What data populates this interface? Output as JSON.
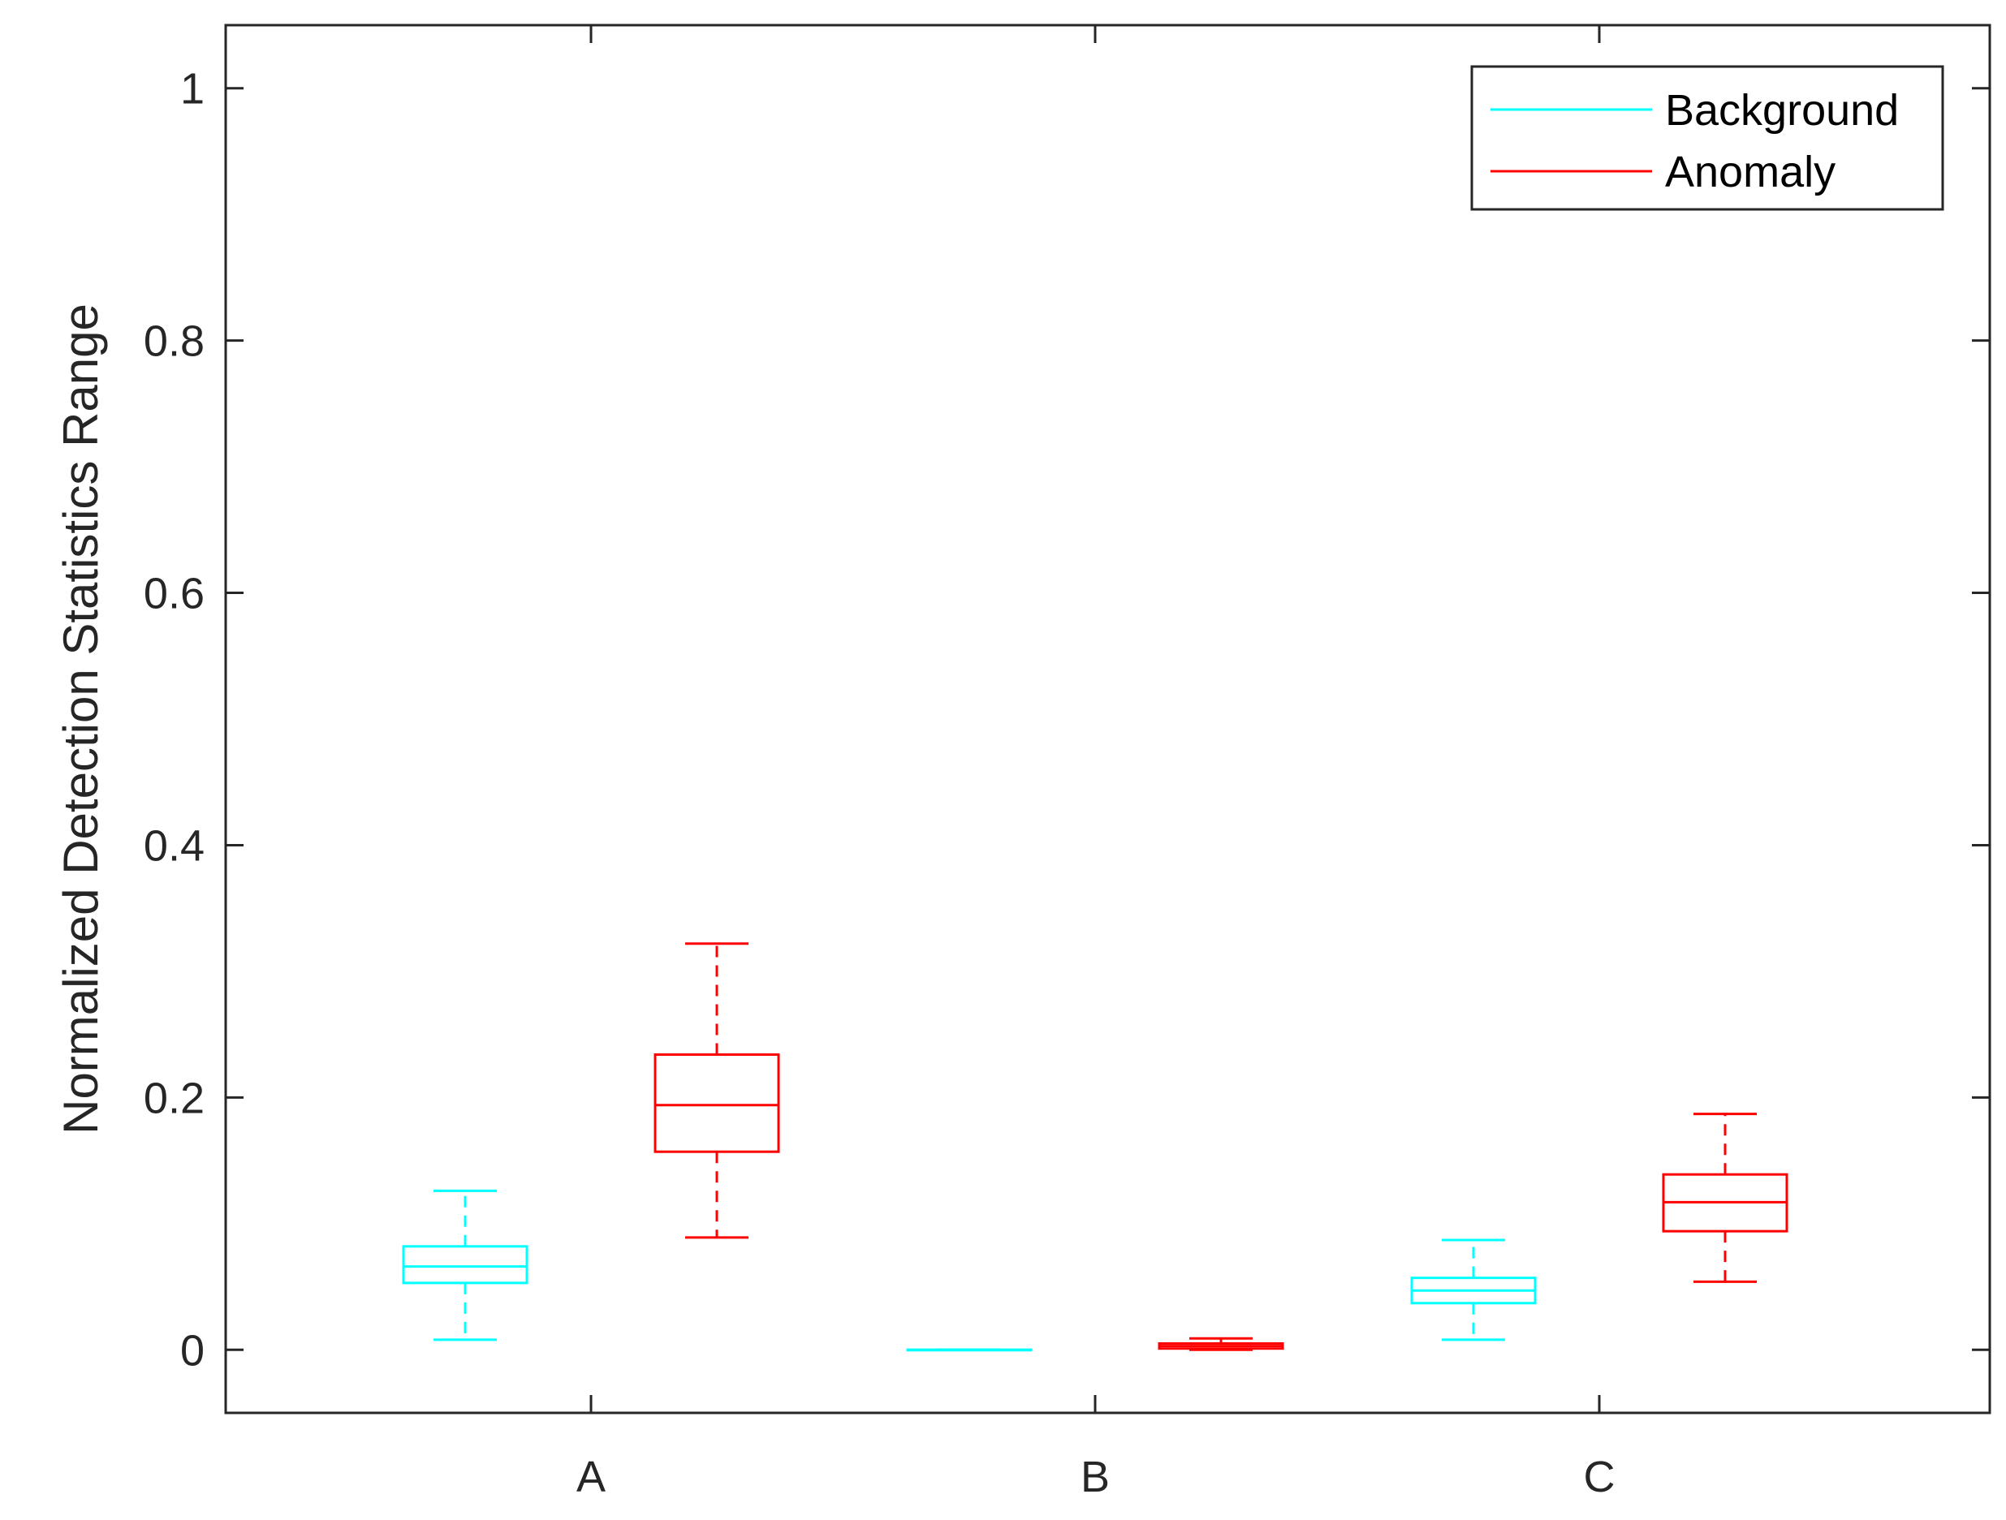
{
  "chart_data": {
    "type": "boxplot",
    "title": "",
    "xlabel": "",
    "ylabel": "Normalized Detection Statistics Range",
    "ylim": [
      -0.05,
      1.05
    ],
    "yticks": [
      0,
      0.2,
      0.4,
      0.6,
      0.8,
      1
    ],
    "ytick_labels": [
      "0",
      "0.2",
      "0.4",
      "0.6",
      "0.8",
      "1"
    ],
    "categories": [
      "A",
      "B",
      "C"
    ],
    "grid": false,
    "legend_position": "top-right",
    "series": [
      {
        "name": "Background",
        "color": "#00ffff",
        "boxes": [
          {
            "category": "A",
            "min": 0.008,
            "q1": 0.053,
            "median": 0.066,
            "q3": 0.082,
            "max": 0.126
          },
          {
            "category": "B",
            "min": 0.0,
            "q1": 0.0,
            "median": 0.0,
            "q3": 0.0,
            "max": 0.0
          },
          {
            "category": "C",
            "min": 0.008,
            "q1": 0.037,
            "median": 0.047,
            "q3": 0.057,
            "max": 0.087
          }
        ]
      },
      {
        "name": "Anomaly",
        "color": "#ff0000",
        "boxes": [
          {
            "category": "A",
            "min": 0.089,
            "q1": 0.157,
            "median": 0.194,
            "q3": 0.234,
            "max": 0.322
          },
          {
            "category": "B",
            "min": 0.0,
            "q1": 0.001,
            "median": 0.003,
            "q3": 0.005,
            "max": 0.009
          },
          {
            "category": "C",
            "min": 0.054,
            "q1": 0.094,
            "median": 0.117,
            "q3": 0.139,
            "max": 0.187
          }
        ]
      }
    ]
  }
}
